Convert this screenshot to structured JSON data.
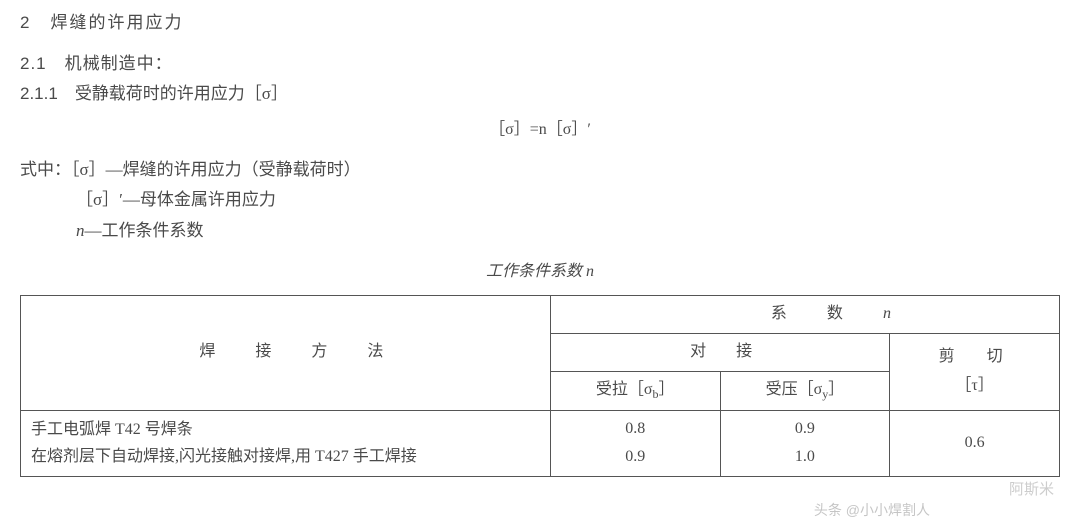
{
  "section": {
    "num": "2",
    "title": "焊缝的许用应力"
  },
  "sub1": {
    "num": "2.1",
    "title": "机械制造中："
  },
  "sub2": {
    "num": "2.1.1",
    "title": "受静载荷时的许用应力［σ］"
  },
  "formula": "［σ］=n［σ］′",
  "defs": {
    "intro": "式中：［σ］—焊缝的许用应力（受静载荷时）",
    "line2": "［σ］′—母体金属许用应力",
    "line3_prefix": "n",
    "line3_rest": "—工作条件系数"
  },
  "tableTitle_prefix": "工作条件系数 ",
  "tableTitle_n": "n",
  "table": {
    "hdr_method": "焊接方法",
    "hdr_coeff_prefix": "系数",
    "hdr_coeff_n": "n",
    "hdr_butt": "对接",
    "hdr_shear": "剪　切",
    "hdr_tension": "受拉［σ",
    "hdr_tension_sub": "b",
    "hdr_tension_end": "］",
    "hdr_comp": "受压［σ",
    "hdr_comp_sub": "y",
    "hdr_comp_end": "］",
    "hdr_tau": "［τ］",
    "rows": [
      {
        "method": "手工电弧焊 T42 号焊条",
        "t": "0.8",
        "c": "0.9",
        "s": "0.6"
      },
      {
        "method": "在熔剂层下自动焊接,闪光接触对接焊,用 T427 手工焊接",
        "t": "0.9",
        "c": "1.0",
        "s": ""
      }
    ]
  },
  "watermark": "阿斯米",
  "watermark2": "头条 @小小焊割人"
}
